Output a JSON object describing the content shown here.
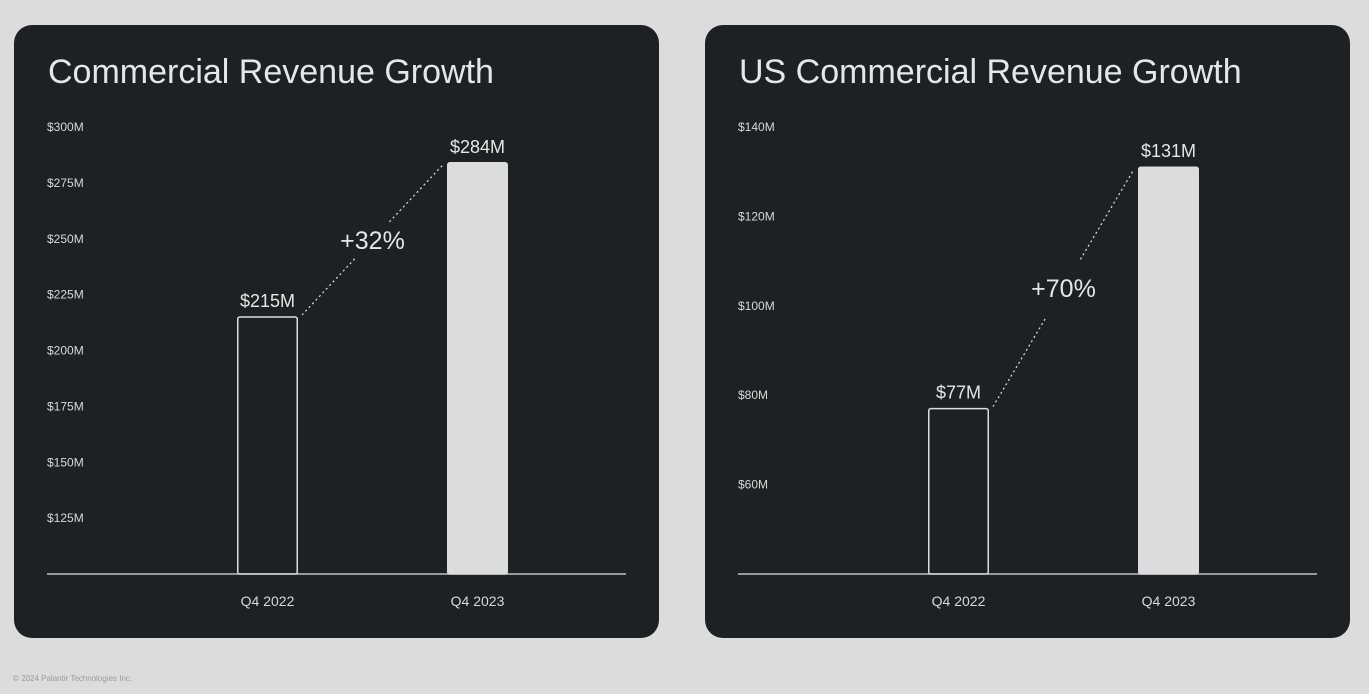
{
  "chart_data": [
    {
      "type": "bar",
      "title": "Commercial Revenue Growth",
      "categories": [
        "Q4 2022",
        "Q4 2023"
      ],
      "values": [
        215,
        284
      ],
      "data_labels": [
        "$215M",
        "$284M"
      ],
      "annotation": "+32%",
      "yticks": [
        125,
        150,
        175,
        200,
        225,
        250,
        275,
        300
      ],
      "ytick_labels": [
        "$125M",
        "$150M",
        "$175M",
        "$200M",
        "$225M",
        "$250M",
        "$275M",
        "$300M"
      ],
      "ylim": [
        100,
        300
      ],
      "bar_styles": [
        "outline",
        "filled"
      ],
      "grid": false
    },
    {
      "type": "bar",
      "title": "US Commercial Revenue Growth",
      "categories": [
        "Q4 2022",
        "Q4 2023"
      ],
      "values": [
        77,
        131
      ],
      "data_labels": [
        "$77M",
        "$131M"
      ],
      "annotation": "+70%",
      "yticks": [
        60,
        80,
        100,
        120,
        140
      ],
      "ytick_labels": [
        "$60M",
        "$80M",
        "$100M",
        "$120M",
        "$140M"
      ],
      "ylim": [
        40,
        140
      ],
      "bar_styles": [
        "outline",
        "filled"
      ],
      "grid": false
    }
  ],
  "colors": {
    "panel": "#1e2023",
    "page": "#dcdcdc",
    "bar": "#dcdcdc",
    "text": "#e6e6e6"
  },
  "footer": "© 2024 Palantir Technologies Inc."
}
